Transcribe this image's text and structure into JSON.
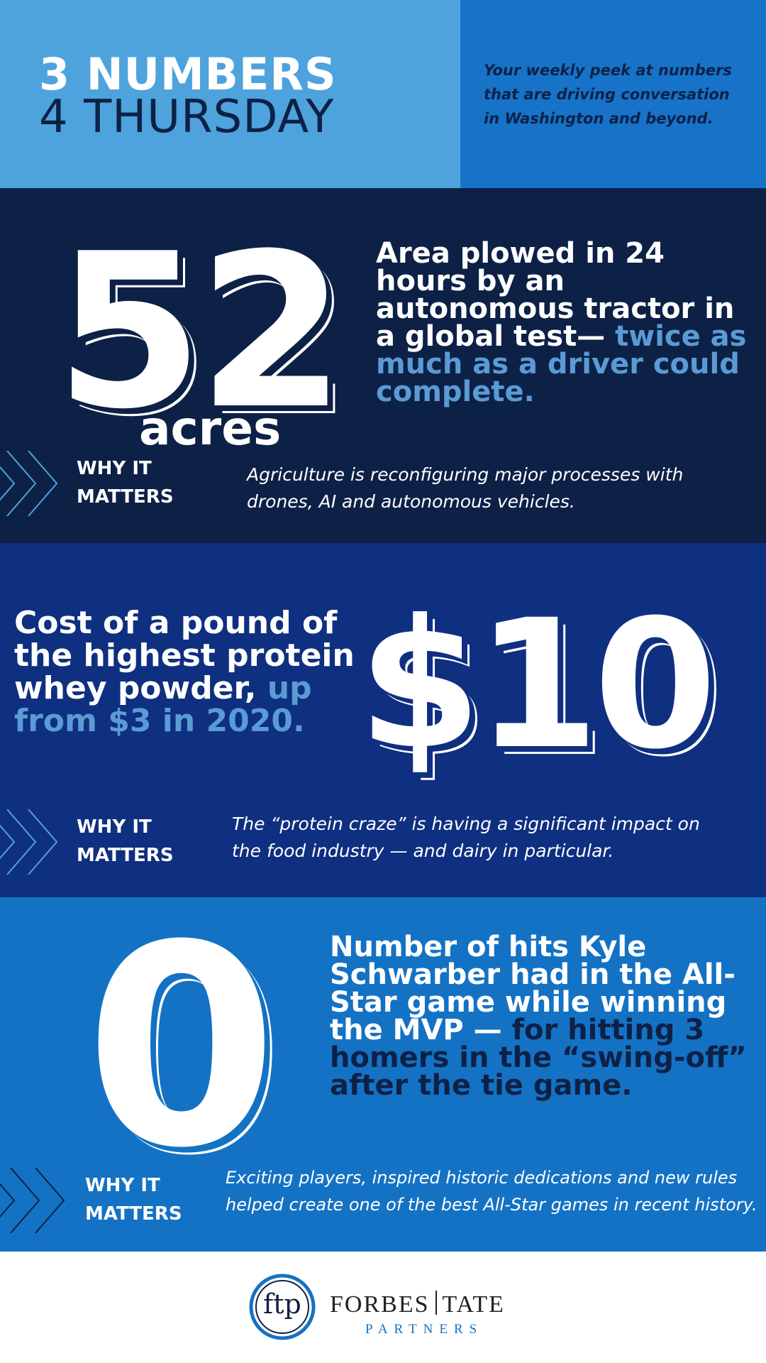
{
  "header": {
    "title_line1": "3 NUMBERS",
    "title_line2": "4 THURSDAY",
    "tagline": "Your weekly peek at numbers that are driving conversation in Washington and beyond."
  },
  "items": [
    {
      "number": "52",
      "unit": "acres",
      "description": "Area plowed in 24 hours by an autonomous tractor in a global test—",
      "highlight": "twice as much as a driver could complete.",
      "why_label": "WHY IT MATTERS",
      "why_text": "Agriculture is reconfiguring major processes with drones, AI and autonomous vehicles."
    },
    {
      "number": "$10",
      "description": "Cost of a pound of the highest protein whey powder,",
      "highlight": "up from $3 in 2020.",
      "why_label": "WHY IT MATTERS",
      "why_text": "The “protein craze” is having a significant impact on the food industry — and dairy in particular."
    },
    {
      "number": "0",
      "description": "Number of hits Kyle Schwarber had in the All-Star game while winning the MVP —",
      "highlight": "for hitting 3 homers in the “swing-off” after the tie game.",
      "why_label": "WHY IT MATTERS",
      "why_text": "Exciting players, inspired historic dedications and new rules helped create one of the best All-Star games in recent history."
    }
  ],
  "footer": {
    "logo": "ftp",
    "name_left": "FORBES",
    "name_right": "TATE",
    "name_bottom": "PARTNERS"
  }
}
